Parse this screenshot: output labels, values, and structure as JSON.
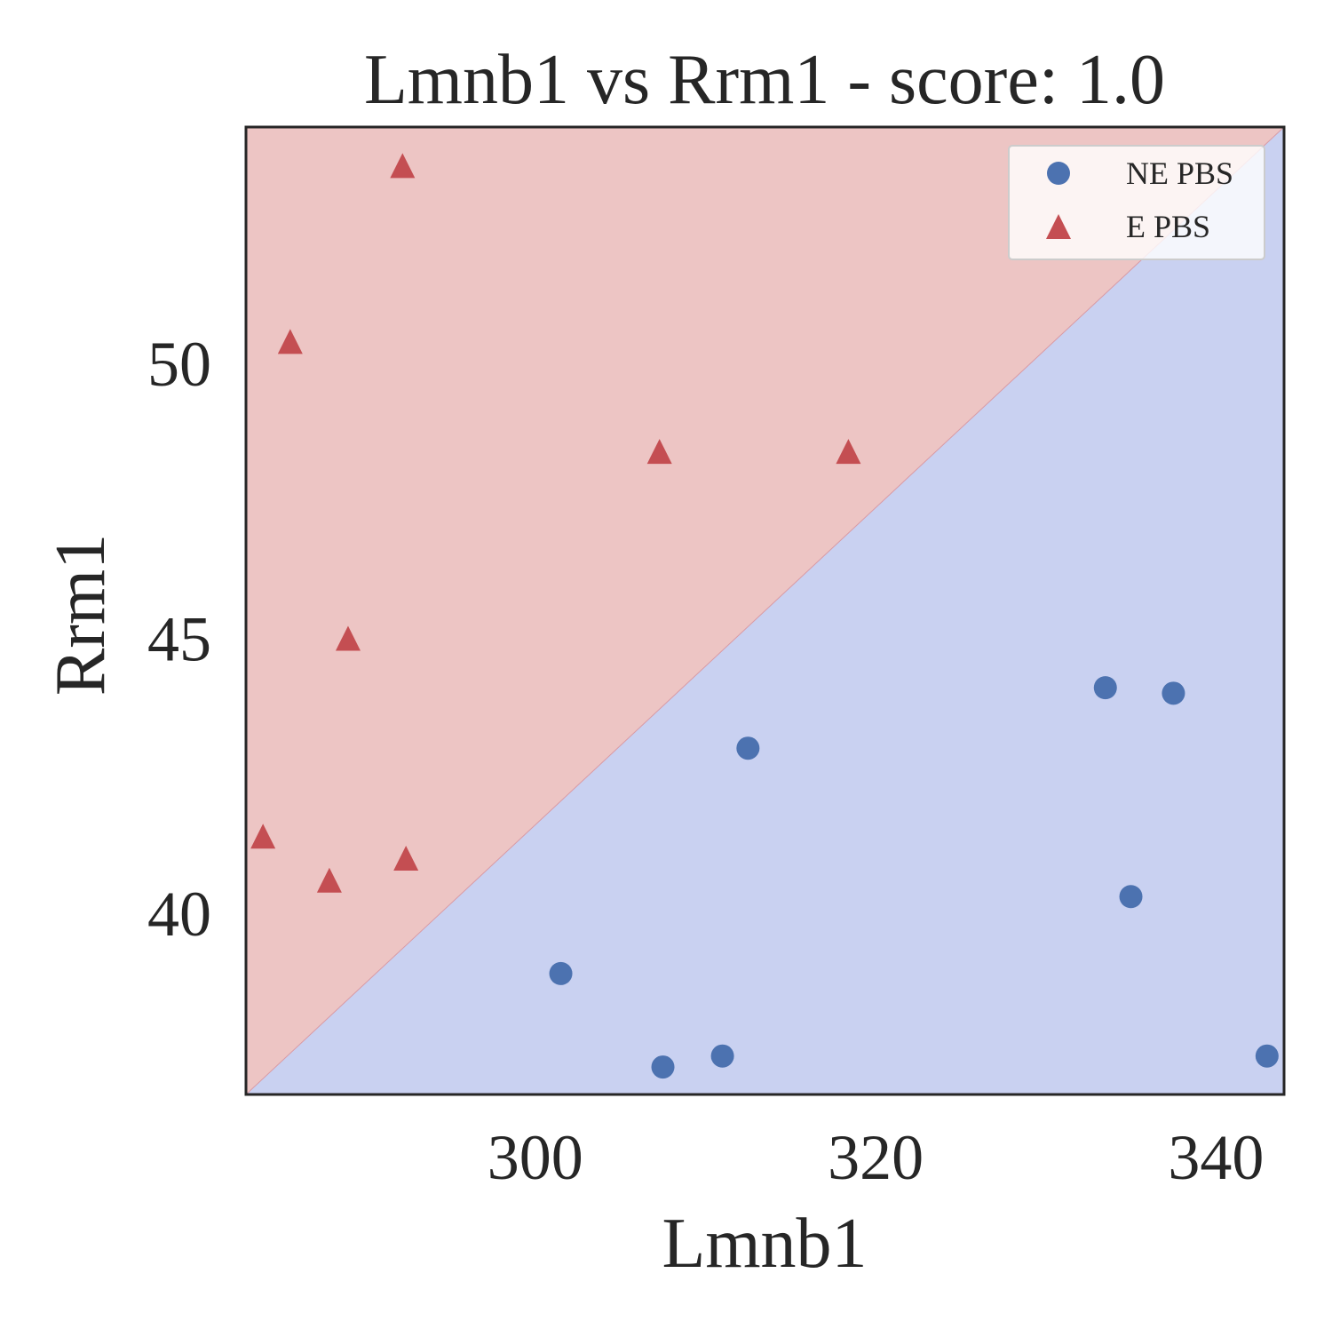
{
  "chart_data": {
    "type": "scatter",
    "title": "Lmnb1 vs Rrm1 - score: 1.0",
    "xlabel": "Lmnb1",
    "ylabel": "Rrm1",
    "xlim": [
      283,
      344
    ],
    "ylim": [
      36.7,
      54.3
    ],
    "xticks": [
      300,
      320,
      340
    ],
    "yticks": [
      40,
      45,
      50
    ],
    "grid": false,
    "legend_position": "top-right",
    "decision_boundary": {
      "line": [
        [
          283,
          36.7
        ],
        [
          344,
          54.3
        ]
      ],
      "above_class": "E PBS",
      "below_class": "NE PBS",
      "above_color": "#edc5c4",
      "below_color": "#c9d1f1"
    },
    "series": [
      {
        "name": "NE PBS",
        "marker": "circle",
        "color": "#4c72b0",
        "points": [
          [
            301.5,
            38.9
          ],
          [
            307.5,
            37.2
          ],
          [
            311.0,
            37.4
          ],
          [
            312.5,
            43.0
          ],
          [
            333.5,
            44.1
          ],
          [
            337.5,
            44.0
          ],
          [
            335.0,
            40.3
          ],
          [
            343.0,
            37.4
          ]
        ]
      },
      {
        "name": "E PBS",
        "marker": "triangle",
        "color": "#c44e52",
        "points": [
          [
            292.2,
            53.6
          ],
          [
            285.6,
            50.4
          ],
          [
            307.3,
            48.4
          ],
          [
            318.4,
            48.4
          ],
          [
            289.0,
            45.0
          ],
          [
            284.0,
            41.4
          ],
          [
            287.9,
            40.6
          ],
          [
            292.4,
            41.0
          ]
        ]
      }
    ]
  }
}
